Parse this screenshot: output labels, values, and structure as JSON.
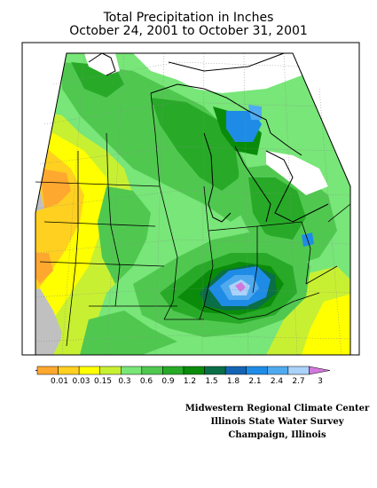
{
  "title": {
    "line1": "Total Precipitation in Inches",
    "line2": "October 24, 2001 to October 31, 2001"
  },
  "legend": {
    "labels": [
      "0.01",
      "0.03",
      "0.15",
      "0.3",
      "0.6",
      "0.9",
      "1.2",
      "1.5",
      "1.8",
      "2.1",
      "2.4",
      "2.7",
      "3"
    ],
    "colors": [
      "#ffa830",
      "#ffd020",
      "#ffff00",
      "#c8f032",
      "#78e678",
      "#50c850",
      "#28aa28",
      "#0a8c0a",
      "#0a6e46",
      "#1464b4",
      "#1e8ce6",
      "#50aaf0",
      "#aad2fa",
      "#d278dc"
    ]
  },
  "credits": {
    "line1": "Midwestern Regional Climate Center",
    "line2": "Illinois State Water Survey",
    "line3": "Champaign, Illinois"
  }
}
